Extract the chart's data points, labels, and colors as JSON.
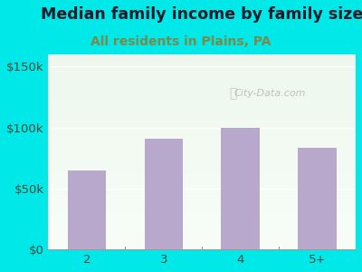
{
  "title": "Median family income by family size",
  "subtitle": "All residents in Plains, PA",
  "categories": [
    "2",
    "3",
    "4",
    "5+"
  ],
  "values": [
    65000,
    91000,
    100000,
    83000
  ],
  "bar_color": "#b8a8cc",
  "background_color": "#00e8e8",
  "title_color": "#1a1a2a",
  "subtitle_color": "#7a8a4a",
  "tick_label_color": "#4a4a3a",
  "ytick_values": [
    0,
    50000,
    100000,
    150000
  ],
  "ylim": [
    0,
    160000
  ],
  "title_fontsize": 12.5,
  "subtitle_fontsize": 10,
  "axis_fontsize": 9.5,
  "watermark": "City-Data.com"
}
